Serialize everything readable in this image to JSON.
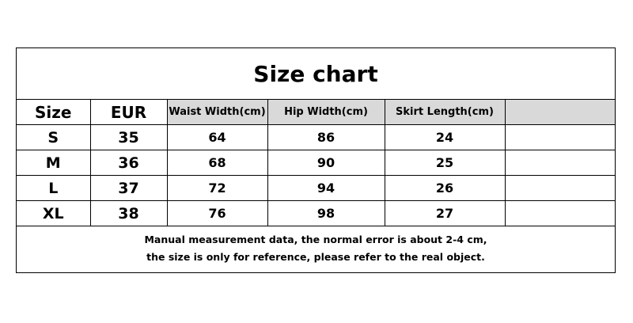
{
  "title": "Size chart",
  "headers": [
    "Size",
    "EUR",
    "Waist Width(cm)",
    "Hip Width(cm)",
    "Skirt Length(cm)",
    ""
  ],
  "rows": [
    [
      "S",
      "35",
      "64",
      "86",
      "24",
      ""
    ],
    [
      "M",
      "36",
      "68",
      "90",
      "25",
      ""
    ],
    [
      "L",
      "37",
      "72",
      "94",
      "26",
      ""
    ],
    [
      "XL",
      "38",
      "76",
      "98",
      "27",
      ""
    ]
  ],
  "note_lines": [
    "Manual measurement data, the normal error is about 2-4 cm,",
    "the size is only for reference, please refer to the real object."
  ],
  "colors": {
    "header_grey": "#d9d9d9",
    "border": "#000000"
  }
}
